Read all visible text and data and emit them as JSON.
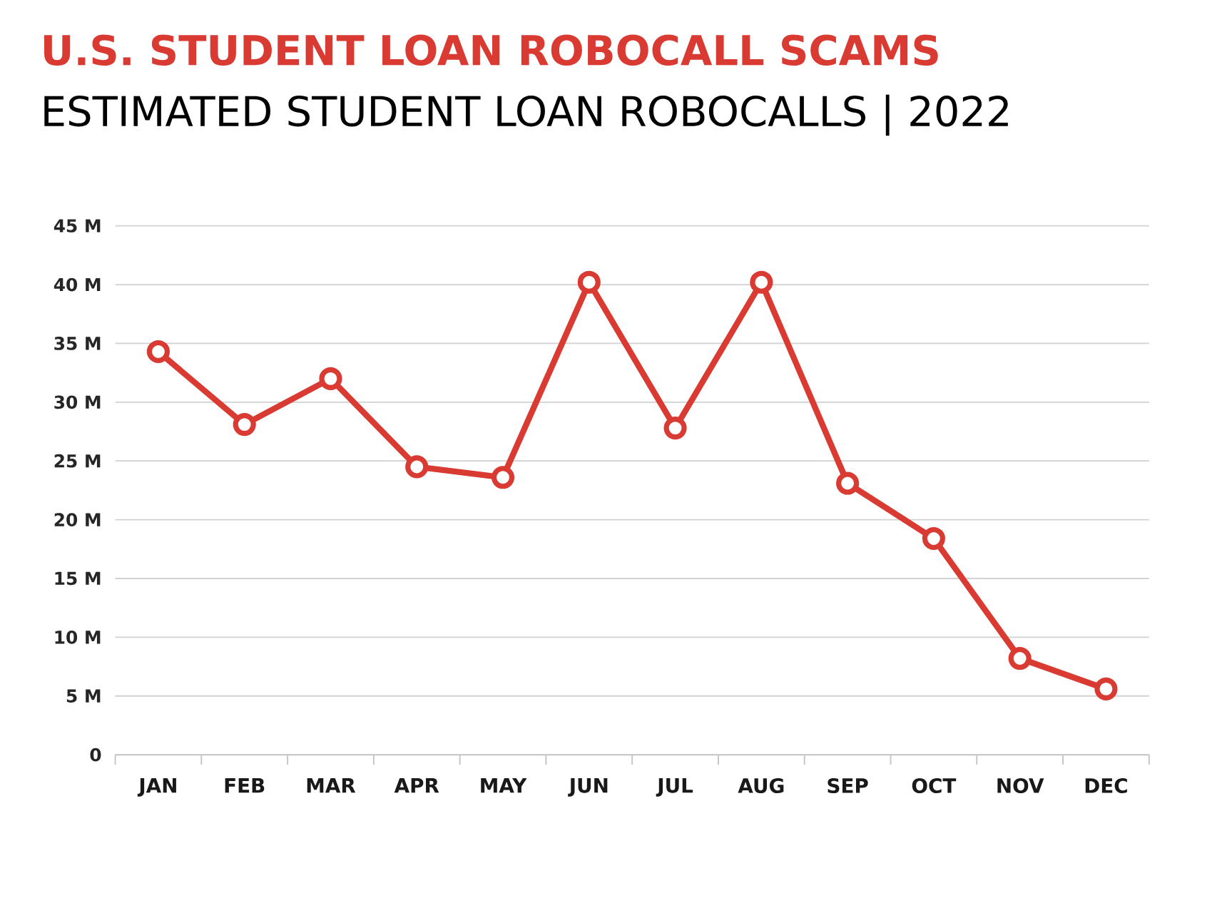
{
  "chart_data": {
    "type": "line",
    "title": "U.S. STUDENT LOAN ROBOCALL SCAMS",
    "subtitle": "ESTIMATED STUDENT LOAN ROBOCALLS | 2022",
    "categories": [
      "JAN",
      "FEB",
      "MAR",
      "APR",
      "MAY",
      "JUN",
      "JUL",
      "AUG",
      "SEP",
      "OCT",
      "NOV",
      "DEC"
    ],
    "series": [
      {
        "color": "#d93a32",
        "values": [
          34.3,
          28.1,
          32.0,
          24.5,
          23.6,
          40.2,
          27.8,
          40.2,
          23.1,
          18.4,
          8.2,
          5.6
        ]
      }
    ],
    "ylim": [
      0,
      45
    ],
    "yticks": [
      0,
      {
        "value": 5,
        "label": "5 M"
      },
      {
        "value": 10,
        "label": "10 M"
      },
      {
        "value": 15,
        "label": "15 M"
      },
      {
        "value": 20,
        "label": "20 M"
      },
      {
        "value": 25,
        "label": "25 M"
      },
      {
        "value": 30,
        "label": "30 M"
      },
      {
        "value": 35,
        "label": "35 M"
      },
      {
        "value": 40,
        "label": "40 M"
      },
      {
        "value": 45,
        "label": "45 M"
      }
    ],
    "grid": "y",
    "marker": "circle",
    "line_style": "solid"
  }
}
